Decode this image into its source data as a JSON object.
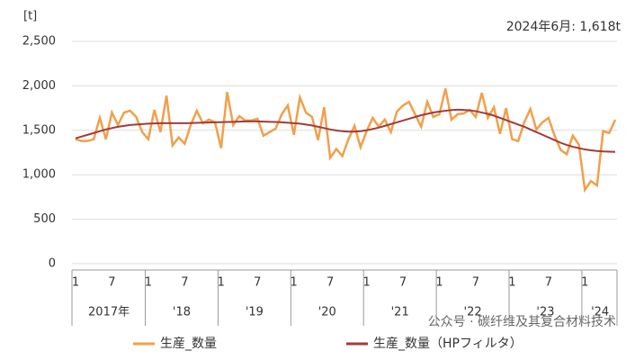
{
  "chart_data": {
    "type": "line",
    "y_axis_label": "[t]",
    "annotation": "2024年6月: 1,618t",
    "watermark": "公众号 · 碳纤维及其复合材料技术",
    "categories": [
      "1",
      null,
      null,
      null,
      null,
      null,
      "7",
      null,
      null,
      null,
      null,
      null,
      "1",
      null,
      null,
      null,
      null,
      null,
      "7",
      null,
      null,
      null,
      null,
      null,
      "1",
      null,
      null,
      null,
      null,
      null,
      "7",
      null,
      null,
      null,
      null,
      null,
      "1",
      null,
      null,
      null,
      null,
      null,
      "7",
      null,
      null,
      null,
      null,
      null,
      "1",
      null,
      null,
      null,
      null,
      null,
      "7",
      null,
      null,
      null,
      null,
      null,
      "1",
      null,
      null,
      null,
      null,
      null,
      "7",
      null,
      null,
      null,
      null,
      null,
      "1",
      null,
      null,
      null,
      null,
      null,
      "7",
      null,
      null,
      null,
      null,
      null,
      "1",
      null,
      null,
      null,
      null,
      null
    ],
    "year_labels": [
      "2017年",
      "'18",
      "'19",
      "'20",
      "'21",
      "'22",
      "'23",
      "'24"
    ],
    "series": [
      {
        "name": "生産_数量",
        "color": "#f0a04b",
        "values": [
          1400,
          1380,
          1380,
          1400,
          1640,
          1400,
          1700,
          1560,
          1700,
          1720,
          1650,
          1480,
          1400,
          1730,
          1480,
          1890,
          1330,
          1420,
          1350,
          1560,
          1720,
          1580,
          1620,
          1590,
          1300,
          1930,
          1560,
          1660,
          1610,
          1610,
          1630,
          1440,
          1480,
          1520,
          1680,
          1780,
          1450,
          1870,
          1700,
          1650,
          1390,
          1760,
          1190,
          1290,
          1210,
          1400,
          1550,
          1310,
          1490,
          1640,
          1540,
          1620,
          1480,
          1710,
          1780,
          1820,
          1680,
          1540,
          1820,
          1650,
          1680,
          1970,
          1620,
          1680,
          1690,
          1730,
          1650,
          1920,
          1640,
          1760,
          1460,
          1750,
          1400,
          1380,
          1590,
          1740,
          1510,
          1590,
          1640,
          1440,
          1280,
          1230,
          1440,
          1340,
          830,
          930,
          880,
          1490,
          1470,
          1618
        ]
      },
      {
        "name": "生産_数量（HPフィルタ）",
        "color": "#a33a3a",
        "values": [
          1410,
          1430,
          1450,
          1470,
          1490,
          1510,
          1525,
          1540,
          1550,
          1560,
          1565,
          1570,
          1575,
          1578,
          1580,
          1580,
          1580,
          1580,
          1580,
          1582,
          1584,
          1586,
          1588,
          1590,
          1592,
          1594,
          1596,
          1598,
          1600,
          1600,
          1600,
          1598,
          1596,
          1594,
          1590,
          1585,
          1580,
          1575,
          1565,
          1555,
          1540,
          1525,
          1510,
          1498,
          1490,
          1485,
          1485,
          1490,
          1500,
          1515,
          1530,
          1550,
          1570,
          1590,
          1610,
          1630,
          1650,
          1670,
          1685,
          1700,
          1710,
          1720,
          1728,
          1732,
          1730,
          1725,
          1715,
          1700,
          1685,
          1665,
          1640,
          1615,
          1590,
          1565,
          1540,
          1510,
          1480,
          1450,
          1420,
          1390,
          1360,
          1335,
          1315,
          1300,
          1285,
          1275,
          1268,
          1263,
          1260,
          1258
        ]
      }
    ],
    "ylim": [
      0,
      2500
    ],
    "yticks": [
      0,
      500,
      {
        "value": 1000,
        "label": "1,000"
      },
      {
        "value": 1500,
        "label": "1,500"
      },
      {
        "value": 2000,
        "label": "2,000"
      },
      {
        "value": 2500,
        "label": "2,500"
      }
    ],
    "grid": true
  }
}
